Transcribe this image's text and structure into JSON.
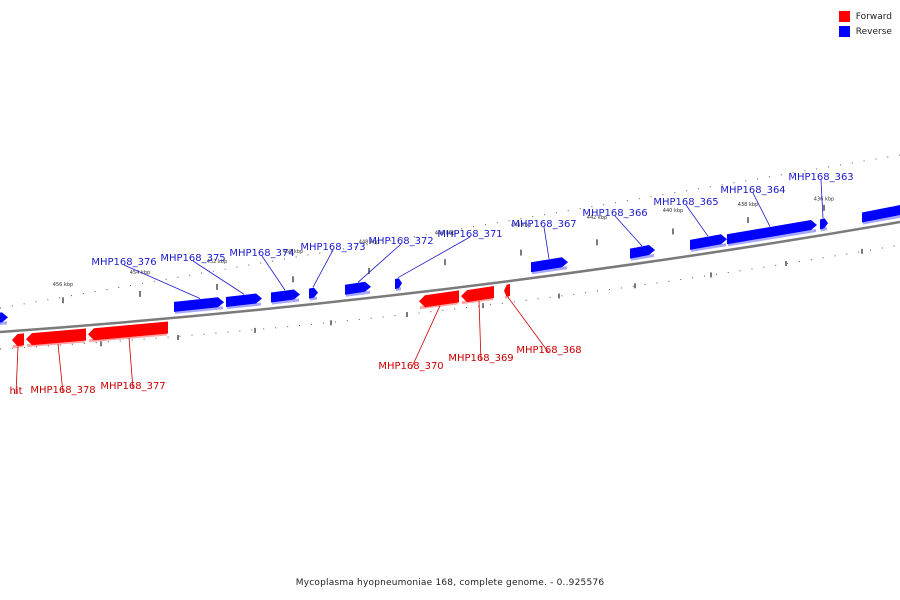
{
  "legend": {
    "forward_label": "Forward",
    "reverse_label": "Reverse",
    "forward_color": "#ff0000",
    "reverse_color": "#0000ff"
  },
  "colors": {
    "forward": "#ff0000",
    "reverse": "#0000ff",
    "forward_label": "#cc0000",
    "reverse_label": "#1a1acc",
    "backbone": "#888888"
  },
  "caption": "Mycoplasma hyopneumoniae 168, complete genome. - 0..925576",
  "tick_labels": [
    "456 kbp",
    "454 kbp",
    "452 kbp",
    "450 kbp",
    "448 kbp",
    "446 kbp",
    "444 kbp",
    "442 kbp",
    "440 kbp",
    "438 kbp",
    "436 kbp"
  ],
  "genes_reverse": [
    {
      "label": "MHP168_376",
      "icon": "reverse-arrow"
    },
    {
      "label": "MHP168_375",
      "icon": "reverse-arrow"
    },
    {
      "label": "MHP168_374",
      "icon": "reverse-arrow"
    },
    {
      "label": "MHP168_373",
      "icon": "reverse-arrow"
    },
    {
      "label": "MHP168_372",
      "icon": "reverse-arrow"
    },
    {
      "label": "MHP168_371",
      "icon": "reverse-arrow"
    },
    {
      "label": "MHP168_367",
      "icon": "reverse-arrow"
    },
    {
      "label": "MHP168_366",
      "icon": "reverse-arrow"
    },
    {
      "label": "MHP168_365",
      "icon": "reverse-arrow"
    },
    {
      "label": "MHP168_364",
      "icon": "reverse-arrow"
    },
    {
      "label": "MHP168_363",
      "icon": "reverse-arrow"
    }
  ],
  "genes_forward": [
    {
      "label": "hit",
      "icon": "forward-arrow"
    },
    {
      "label": "MHP168_378",
      "icon": "forward-arrow"
    },
    {
      "label": "MHP168_377",
      "icon": "forward-arrow"
    },
    {
      "label": "MHP168_370",
      "icon": "forward-arrow"
    },
    {
      "label": "MHP168_369",
      "icon": "forward-arrow"
    },
    {
      "label": "MHP168_368",
      "icon": "forward-arrow"
    }
  ]
}
